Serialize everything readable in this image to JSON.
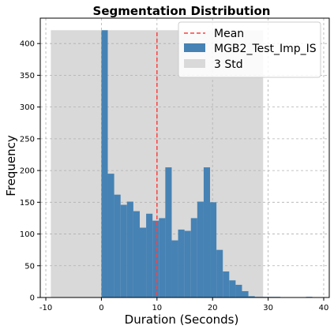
{
  "colors": {
    "bar": "#4682b4",
    "std_band": "#d9d9d9",
    "mean_line": "#ff4040",
    "grid": "#b0b0b0"
  },
  "chart_data": {
    "type": "bar",
    "title": "Segmentation Distribution",
    "xlabel": "Duration (Seconds)",
    "ylabel": "Frequency",
    "xlim": [
      -11,
      41
    ],
    "ylim": [
      0,
      440
    ],
    "xticks": [
      -10,
      0,
      10,
      20,
      30,
      40
    ],
    "yticks": [
      0,
      50,
      100,
      150,
      200,
      250,
      300,
      350,
      400
    ],
    "grid": true,
    "legend_position": "top-right",
    "legend": [
      "Mean",
      "MGB2_Test_Imp_IS",
      "3 Std"
    ],
    "series": [
      {
        "name": "MGB2_Test_Imp_IS",
        "bin_edges": [
          0,
          1.15,
          2.3,
          3.45,
          4.6,
          5.75,
          6.9,
          8.05,
          9.2,
          10.35,
          11.5,
          12.65,
          13.8,
          14.95,
          16.1,
          17.25,
          18.4,
          19.55,
          20.7,
          21.85,
          23.0,
          24.15,
          25.3,
          26.45,
          27.6,
          28.75,
          29.9,
          31.05,
          32.2,
          33.35,
          34.5,
          35.65,
          36.8,
          37.95
        ],
        "values": [
          421,
          195,
          162,
          146,
          151,
          136,
          110,
          132,
          121,
          125,
          205,
          90,
          107,
          105,
          125,
          151,
          205,
          150,
          75,
          41,
          27,
          20,
          10,
          2,
          1,
          1,
          1,
          1,
          0,
          0,
          0,
          0,
          1
        ]
      }
    ],
    "mean": 10.0,
    "std_range": [
      -9.1,
      29.1
    ],
    "std_height": 421
  }
}
